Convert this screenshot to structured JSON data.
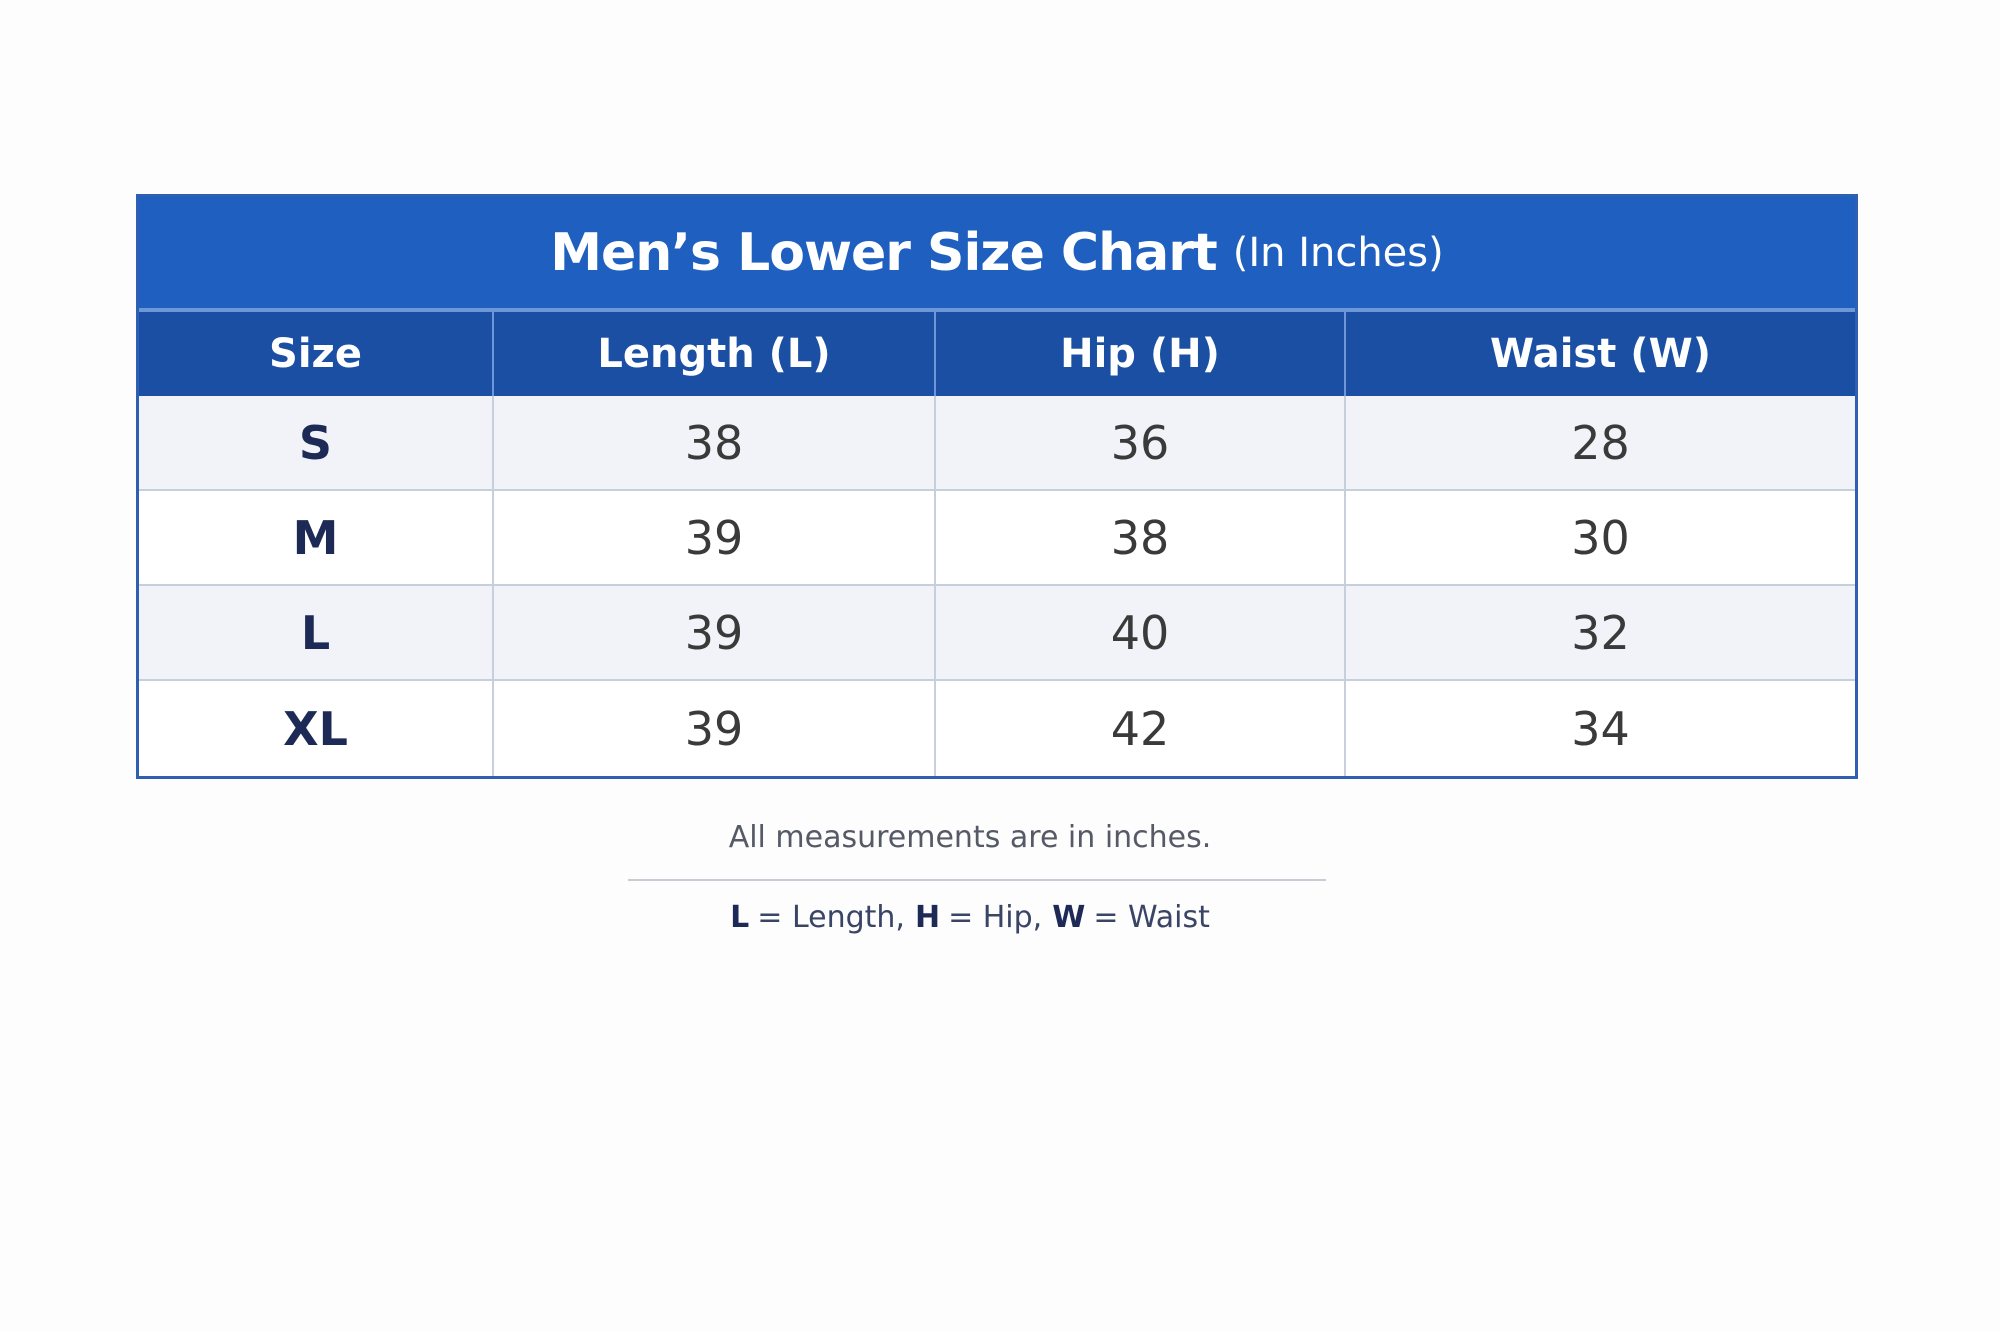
{
  "table": {
    "title": "Men’s Lower Size Chart",
    "subtitle": "(In Inches)",
    "columns": [
      "Size",
      "Length (L)",
      "Hip (H)",
      "Waist (W)"
    ],
    "rows": [
      [
        "S",
        38,
        36,
        28
      ],
      [
        "M",
        39,
        38,
        30
      ],
      [
        "L",
        39,
        40,
        32
      ],
      [
        "XL",
        39,
        42,
        34
      ]
    ]
  },
  "footer": {
    "note": "All measurements are in inches.",
    "legend": [
      {
        "key": "L",
        "text": "= Length,"
      },
      {
        "key": "H",
        "text": "= Hip,"
      },
      {
        "key": "W",
        "text": "= Waist"
      }
    ]
  }
}
